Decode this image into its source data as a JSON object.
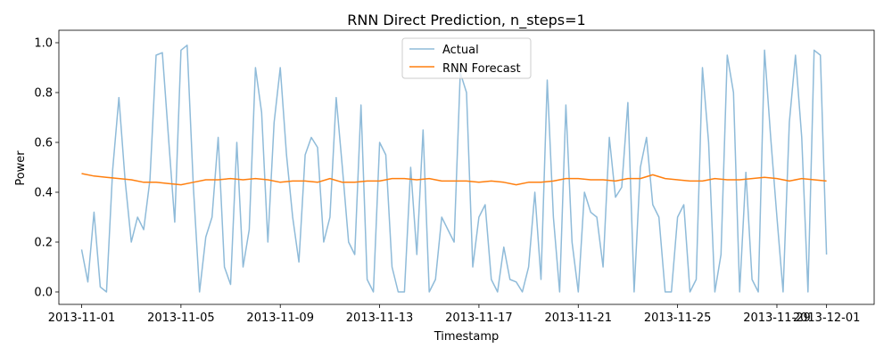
{
  "chart_data": {
    "type": "line",
    "title": "RNN Direct Prediction, n_steps=1",
    "xlabel": "Timestamp",
    "ylabel": "Power",
    "xlim": [
      "2013-10-31T02:00",
      "2013-12-02T22:00"
    ],
    "ylim": [
      -0.05,
      1.05
    ],
    "xticks": [
      "2013-11-01",
      "2013-11-05",
      "2013-11-09",
      "2013-11-13",
      "2013-11-17",
      "2013-11-21",
      "2013-11-25",
      "2013-11-29",
      "2013-12-01"
    ],
    "yticks": [
      0.0,
      0.2,
      0.4,
      0.6,
      0.8,
      1.0
    ],
    "ytick_labels": [
      "0.0",
      "0.2",
      "0.4",
      "0.6",
      "0.8",
      "1.0"
    ],
    "grid": false,
    "legend_position": "upper center",
    "series": [
      {
        "name": "Actual",
        "color": "#1f77b4",
        "alpha": 0.5,
        "x": [
          "2013-11-01T00:00",
          "2013-11-01T06:00",
          "2013-11-01T12:00",
          "2013-11-01T18:00",
          "2013-11-02T00:00",
          "2013-11-02T06:00",
          "2013-11-02T12:00",
          "2013-11-02T18:00",
          "2013-11-03T00:00",
          "2013-11-03T06:00",
          "2013-11-03T12:00",
          "2013-11-03T18:00",
          "2013-11-04T00:00",
          "2013-11-04T06:00",
          "2013-11-04T12:00",
          "2013-11-04T18:00",
          "2013-11-05T00:00",
          "2013-11-05T06:00",
          "2013-11-05T12:00",
          "2013-11-05T18:00",
          "2013-11-06T00:00",
          "2013-11-06T06:00",
          "2013-11-06T12:00",
          "2013-11-06T18:00",
          "2013-11-07T00:00",
          "2013-11-07T06:00",
          "2013-11-07T12:00",
          "2013-11-07T18:00",
          "2013-11-08T00:00",
          "2013-11-08T06:00",
          "2013-11-08T12:00",
          "2013-11-08T18:00",
          "2013-11-09T00:00",
          "2013-11-09T06:00",
          "2013-11-09T12:00",
          "2013-11-09T18:00",
          "2013-11-10T00:00",
          "2013-11-10T06:00",
          "2013-11-10T12:00",
          "2013-11-10T18:00",
          "2013-11-11T00:00",
          "2013-11-11T06:00",
          "2013-11-11T12:00",
          "2013-11-11T18:00",
          "2013-11-12T00:00",
          "2013-11-12T06:00",
          "2013-11-12T12:00",
          "2013-11-12T18:00",
          "2013-11-13T00:00",
          "2013-11-13T06:00",
          "2013-11-13T12:00",
          "2013-11-13T18:00",
          "2013-11-14T00:00",
          "2013-11-14T06:00",
          "2013-11-14T12:00",
          "2013-11-14T18:00",
          "2013-11-15T00:00",
          "2013-11-15T06:00",
          "2013-11-15T12:00",
          "2013-11-15T18:00",
          "2013-11-16T00:00",
          "2013-11-16T06:00",
          "2013-11-16T12:00",
          "2013-11-16T18:00",
          "2013-11-17T00:00",
          "2013-11-17T06:00",
          "2013-11-17T12:00",
          "2013-11-17T18:00",
          "2013-11-18T00:00",
          "2013-11-18T06:00",
          "2013-11-18T12:00",
          "2013-11-18T18:00",
          "2013-11-19T00:00",
          "2013-11-19T06:00",
          "2013-11-19T12:00",
          "2013-11-19T18:00",
          "2013-11-20T00:00",
          "2013-11-20T06:00",
          "2013-11-20T12:00",
          "2013-11-20T18:00",
          "2013-11-21T00:00",
          "2013-11-21T06:00",
          "2013-11-21T12:00",
          "2013-11-21T18:00",
          "2013-11-22T00:00",
          "2013-11-22T06:00",
          "2013-11-22T12:00",
          "2013-11-22T18:00",
          "2013-11-23T00:00",
          "2013-11-23T06:00",
          "2013-11-23T12:00",
          "2013-11-23T18:00",
          "2013-11-24T00:00",
          "2013-11-24T06:00",
          "2013-11-24T12:00",
          "2013-11-24T18:00",
          "2013-11-25T00:00",
          "2013-11-25T06:00",
          "2013-11-25T12:00",
          "2013-11-25T18:00",
          "2013-11-26T00:00",
          "2013-11-26T06:00",
          "2013-11-26T12:00",
          "2013-11-26T18:00",
          "2013-11-27T00:00",
          "2013-11-27T06:00",
          "2013-11-27T12:00",
          "2013-11-27T18:00",
          "2013-11-28T00:00",
          "2013-11-28T06:00",
          "2013-11-28T12:00",
          "2013-11-28T18:00",
          "2013-11-29T00:00",
          "2013-11-29T06:00",
          "2013-11-29T12:00",
          "2013-11-29T18:00",
          "2013-11-30T00:00",
          "2013-11-30T06:00",
          "2013-11-30T12:00",
          "2013-11-30T18:00",
          "2013-12-01T00:00"
        ],
        "y": [
          0.17,
          0.04,
          0.32,
          0.02,
          0.0,
          0.49,
          0.78,
          0.45,
          0.2,
          0.3,
          0.25,
          0.45,
          0.95,
          0.96,
          0.62,
          0.28,
          0.97,
          0.99,
          0.42,
          0.0,
          0.22,
          0.3,
          0.62,
          0.1,
          0.03,
          0.6,
          0.1,
          0.25,
          0.9,
          0.72,
          0.2,
          0.68,
          0.9,
          0.55,
          0.3,
          0.12,
          0.55,
          0.62,
          0.58,
          0.2,
          0.3,
          0.78,
          0.5,
          0.2,
          0.15,
          0.75,
          0.05,
          0.0,
          0.6,
          0.55,
          0.1,
          0.0,
          0.0,
          0.5,
          0.15,
          0.65,
          0.0,
          0.05,
          0.3,
          0.25,
          0.2,
          0.88,
          0.8,
          0.1,
          0.3,
          0.35,
          0.05,
          0.0,
          0.18,
          0.05,
          0.04,
          0.0,
          0.1,
          0.4,
          0.05,
          0.85,
          0.3,
          0.0,
          0.75,
          0.2,
          0.0,
          0.4,
          0.32,
          0.3,
          0.1,
          0.62,
          0.38,
          0.42,
          0.76,
          0.0,
          0.5,
          0.62,
          0.35,
          0.3,
          0.0,
          0.0,
          0.3,
          0.35,
          0.0,
          0.05,
          0.9,
          0.6,
          0.0,
          0.15,
          0.95,
          0.8,
          0.0,
          0.48,
          0.05,
          0.0,
          0.97,
          0.62,
          0.3,
          0.0,
          0.68,
          0.95,
          0.62,
          0.0,
          0.97,
          0.95,
          0.15
        ]
      },
      {
        "name": "RNN Forecast",
        "color": "#ff7f0e",
        "alpha": 1.0,
        "x": [
          "2013-11-01T00:00",
          "2013-11-01T12:00",
          "2013-11-02T00:00",
          "2013-11-02T12:00",
          "2013-11-03T00:00",
          "2013-11-03T12:00",
          "2013-11-04T00:00",
          "2013-11-04T12:00",
          "2013-11-05T00:00",
          "2013-11-05T12:00",
          "2013-11-06T00:00",
          "2013-11-06T12:00",
          "2013-11-07T00:00",
          "2013-11-07T12:00",
          "2013-11-08T00:00",
          "2013-11-08T12:00",
          "2013-11-09T00:00",
          "2013-11-09T12:00",
          "2013-11-10T00:00",
          "2013-11-10T12:00",
          "2013-11-11T00:00",
          "2013-11-11T12:00",
          "2013-11-12T00:00",
          "2013-11-12T12:00",
          "2013-11-13T00:00",
          "2013-11-13T12:00",
          "2013-11-14T00:00",
          "2013-11-14T12:00",
          "2013-11-15T00:00",
          "2013-11-15T12:00",
          "2013-11-16T00:00",
          "2013-11-16T12:00",
          "2013-11-17T00:00",
          "2013-11-17T12:00",
          "2013-11-18T00:00",
          "2013-11-18T12:00",
          "2013-11-19T00:00",
          "2013-11-19T12:00",
          "2013-11-20T00:00",
          "2013-11-20T12:00",
          "2013-11-21T00:00",
          "2013-11-21T12:00",
          "2013-11-22T00:00",
          "2013-11-22T12:00",
          "2013-11-23T00:00",
          "2013-11-23T12:00",
          "2013-11-24T00:00",
          "2013-11-24T12:00",
          "2013-11-25T00:00",
          "2013-11-25T12:00",
          "2013-11-26T00:00",
          "2013-11-26T12:00",
          "2013-11-27T00:00",
          "2013-11-27T12:00",
          "2013-11-28T00:00",
          "2013-11-28T12:00",
          "2013-11-29T00:00",
          "2013-11-29T12:00",
          "2013-11-30T00:00",
          "2013-11-30T12:00",
          "2013-12-01T00:00"
        ],
        "y": [
          0.475,
          0.465,
          0.46,
          0.455,
          0.45,
          0.44,
          0.44,
          0.435,
          0.43,
          0.44,
          0.45,
          0.45,
          0.455,
          0.45,
          0.455,
          0.45,
          0.44,
          0.445,
          0.445,
          0.44,
          0.455,
          0.44,
          0.44,
          0.445,
          0.445,
          0.455,
          0.455,
          0.45,
          0.455,
          0.445,
          0.445,
          0.445,
          0.44,
          0.445,
          0.44,
          0.43,
          0.44,
          0.44,
          0.445,
          0.455,
          0.455,
          0.45,
          0.45,
          0.445,
          0.455,
          0.455,
          0.47,
          0.455,
          0.45,
          0.445,
          0.445,
          0.455,
          0.45,
          0.45,
          0.455,
          0.46,
          0.455,
          0.445,
          0.455,
          0.45,
          0.445
        ]
      }
    ]
  }
}
